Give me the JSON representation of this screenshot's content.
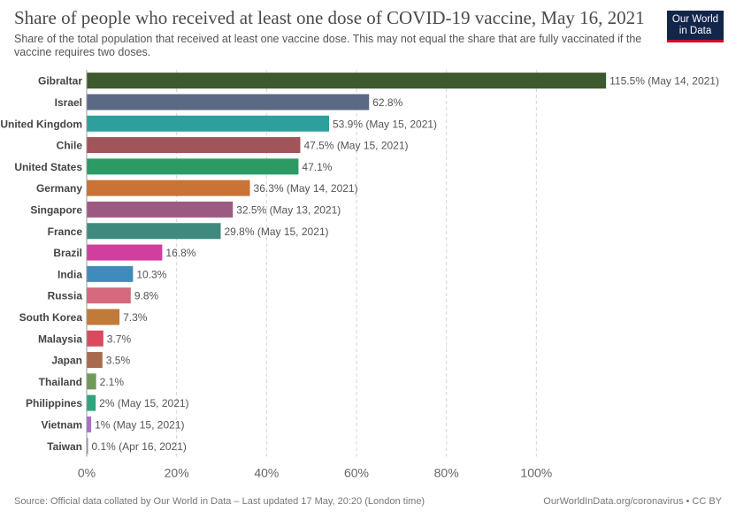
{
  "header": {
    "title": "Share of people who received at least one dose of COVID-19 vaccine, May 16, 2021",
    "subtitle": "Share of the total population that received at least one vaccine dose. This may not equal the share that are fully vaccinated if the vaccine requires two doses.",
    "logo_line1": "Our World",
    "logo_line2": "in Data"
  },
  "footer": {
    "source": "Source: Official data collated by Our World in Data – Last updated 17 May, 20:20 (London time)",
    "credit": "OurWorldInData.org/coronavirus • CC BY"
  },
  "chart_data": {
    "type": "bar",
    "orientation": "horizontal",
    "xlim": [
      0,
      120
    ],
    "x_ticks": [
      0,
      20,
      40,
      60,
      80,
      100
    ],
    "x_tick_labels": [
      "0%",
      "20%",
      "40%",
      "60%",
      "80%",
      "100%"
    ],
    "grid": true,
    "categories": [
      "Gibraltar",
      "Israel",
      "United Kingdom",
      "Chile",
      "United States",
      "Germany",
      "Singapore",
      "France",
      "Brazil",
      "India",
      "Russia",
      "South Korea",
      "Malaysia",
      "Japan",
      "Thailand",
      "Philippines",
      "Vietnam",
      "Taiwan"
    ],
    "values": [
      115.5,
      62.8,
      53.9,
      47.5,
      47.1,
      36.3,
      32.5,
      29.8,
      16.8,
      10.3,
      9.8,
      7.3,
      3.7,
      3.5,
      2.1,
      2,
      1,
      0.1
    ],
    "labels": [
      "115.5% (May 14, 2021)",
      "62.8%",
      "53.9% (May 15, 2021)",
      "47.5% (May 15, 2021)",
      "47.1%",
      "36.3% (May 14, 2021)",
      "32.5% (May 13, 2021)",
      "29.8% (May 15, 2021)",
      "16.8%",
      "10.3%",
      "9.8%",
      "7.3%",
      "3.7%",
      "3.5%",
      "2.1%",
      "2% (May 15, 2021)",
      "1% (May 15, 2021)",
      "0.1% (Apr 16, 2021)"
    ],
    "colors": [
      "#3c5a2e",
      "#5b6a84",
      "#2d9f9c",
      "#a15459",
      "#2b9a63",
      "#c97336",
      "#9c5a82",
      "#3f8a7e",
      "#d03f9d",
      "#3d8cbc",
      "#d56a7e",
      "#c07a3a",
      "#d9495f",
      "#a86a4e",
      "#6e9a5a",
      "#2ea57c",
      "#a870c6",
      "#8d8fa6"
    ]
  }
}
